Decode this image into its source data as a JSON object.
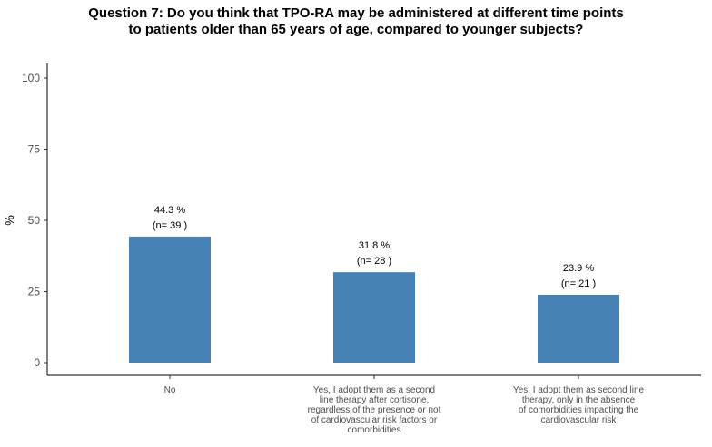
{
  "chart_data": {
    "type": "bar",
    "title": [
      "Question 7: Do you think that TPO-RA may be administered at different time points",
      "to patients older than 65 years of age, compared to younger subjects?"
    ],
    "ylabel": "%",
    "xlabel": "",
    "ylim": [
      0,
      100
    ],
    "yticks": [
      0,
      25,
      50,
      75,
      100
    ],
    "grid": false,
    "bar_color": "#4682b4",
    "categories": [
      [
        "No"
      ],
      [
        "Yes, I adopt them as a second",
        "line therapy after cortisone,",
        "regardless of the presence or not",
        "of cardiovascular risk factors or",
        "comorbidities"
      ],
      [
        "Yes, I adopt them as second line",
        "therapy, only in the absence",
        "of comorbidities impacting the",
        "cardiovascular risk"
      ]
    ],
    "values": [
      44.3,
      31.8,
      23.9
    ],
    "labels": [
      [
        "44.3 %",
        "(n= 39 )"
      ],
      [
        "31.8 %",
        "(n= 28 )"
      ],
      [
        "23.9 %",
        "(n= 21 )"
      ]
    ]
  }
}
